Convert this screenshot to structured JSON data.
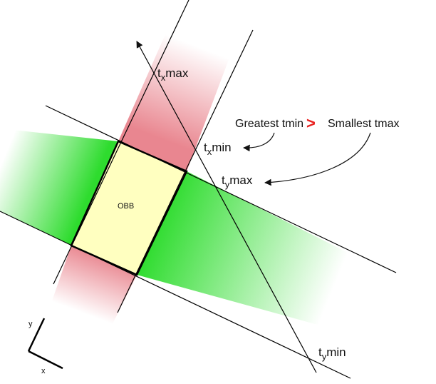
{
  "labels": {
    "obb": "OBB",
    "greatest_tmin": "Greatest tmin",
    "comparator": ">",
    "smallest_tmax": "Smallest tmax",
    "t": "t",
    "x": "x",
    "y": "y",
    "max": "max",
    "min": "min",
    "axis_x": "x",
    "axis_y": "y"
  },
  "colors": {
    "slab_x": "#e8808a",
    "slab_y": "#2edc2e",
    "box_fill": "#ffffc0",
    "comparator": "#e8201e"
  }
}
